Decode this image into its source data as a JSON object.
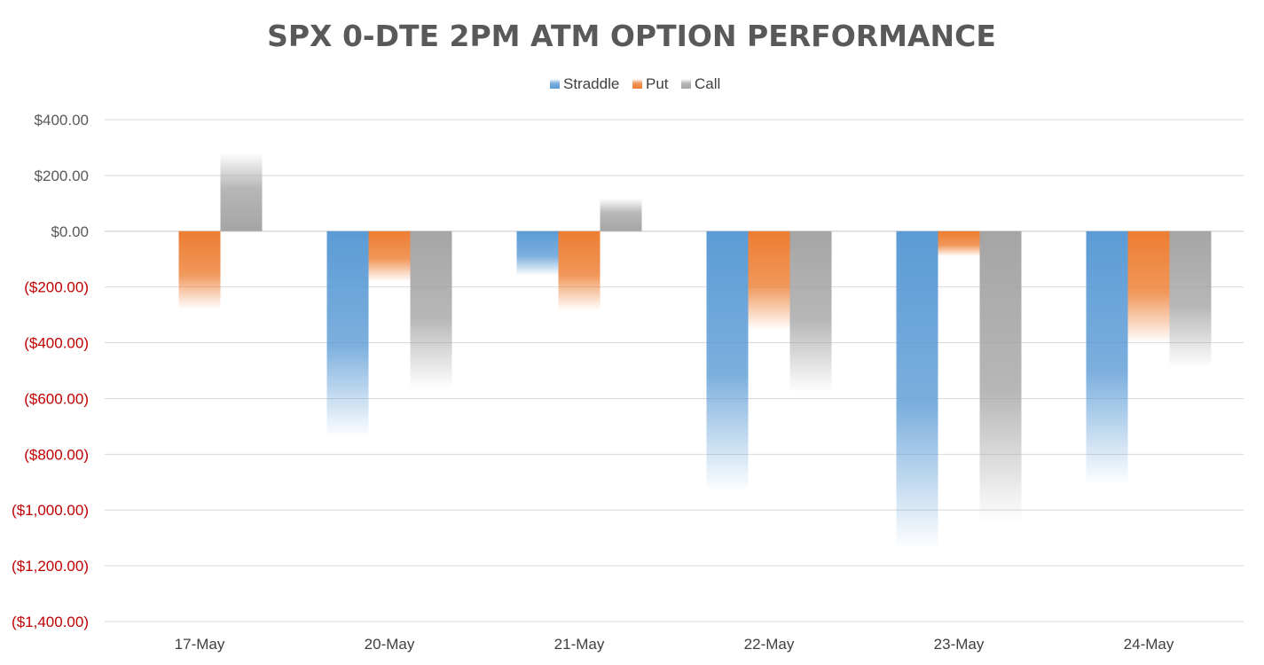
{
  "chart_data": {
    "type": "bar",
    "title": "SPX 0-DTE 2PM ATM OPTION PERFORMANCE",
    "categories": [
      "17-May",
      "20-May",
      "21-May",
      "22-May",
      "23-May",
      "24-May"
    ],
    "series": [
      {
        "name": "Straddle",
        "color": "#5b9bd5",
        "values": [
          0,
          -740,
          -160,
          -935,
          -1140,
          -910
        ]
      },
      {
        "name": "Put",
        "color": "#ed7d31",
        "values": [
          -280,
          -180,
          -285,
          -355,
          -90,
          -400
        ]
      },
      {
        "name": "Call",
        "color": "#a5a5a5",
        "values": [
          282,
          -565,
          118,
          -580,
          -1050,
          -490
        ]
      }
    ],
    "ylim": [
      -1400,
      400
    ],
    "yticks": [
      400,
      200,
      0,
      -200,
      -400,
      -600,
      -800,
      -1000,
      -1200,
      -1400
    ],
    "ytick_labels": [
      "$400.00",
      "$200.00",
      "$0.00",
      "($200.00)",
      "($400.00)",
      "($600.00)",
      "($800.00)",
      "($1,000.00)",
      "($1,200.00)",
      "($1,400.00)"
    ],
    "positive_label_color": "#595959",
    "negative_label_color": "#c00000",
    "gridline_color": "#d9d9d9",
    "grid": true,
    "legend_position": "top"
  }
}
